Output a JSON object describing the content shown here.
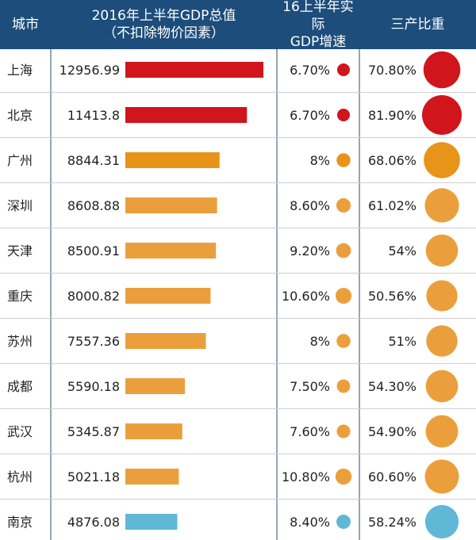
{
  "header": {
    "city": "城市",
    "gdp_line1": "2016年上半年GDP总值",
    "gdp_line2": "（不扣除物价因素）",
    "growth_line1": "16上半年实际",
    "growth_line2": "GDP增速",
    "tertiary": "三产比重"
  },
  "colors": {
    "header_bg": "#1d4d7a",
    "red": "#d0151d",
    "orange": "#eb9f3c",
    "dark_orange": "#e8931a",
    "blue": "#5fb8d6"
  },
  "chart_data": {
    "type": "table",
    "columns": [
      "城市",
      "2016年上半年GDP总值（不扣除物价因素）",
      "16上半年实际GDP增速",
      "三产比重"
    ],
    "rows": [
      {
        "city": "上海",
        "gdp": 12956.99,
        "gdp_label": "12956.99",
        "growth": 6.7,
        "growth_label": "6.70%",
        "tertiary": 70.8,
        "tertiary_label": "70.80%",
        "color": "red"
      },
      {
        "city": "北京",
        "gdp": 11413.8,
        "gdp_label": "11413.8",
        "growth": 6.7,
        "growth_label": "6.70%",
        "tertiary": 81.9,
        "tertiary_label": "81.90%",
        "color": "red"
      },
      {
        "city": "广州",
        "gdp": 8844.31,
        "gdp_label": "8844.31",
        "growth": 8,
        "growth_label": "8%",
        "tertiary": 68.06,
        "tertiary_label": "68.06%",
        "color": "dark_orange"
      },
      {
        "city": "深圳",
        "gdp": 8608.88,
        "gdp_label": "8608.88",
        "growth": 8.6,
        "growth_label": "8.60%",
        "tertiary": 61.02,
        "tertiary_label": "61.02%",
        "color": "orange"
      },
      {
        "city": "天津",
        "gdp": 8500.91,
        "gdp_label": "8500.91",
        "growth": 9.2,
        "growth_label": "9.20%",
        "tertiary": 54,
        "tertiary_label": "54%",
        "color": "orange"
      },
      {
        "city": "重庆",
        "gdp": 8000.82,
        "gdp_label": "8000.82",
        "growth": 10.6,
        "growth_label": "10.60%",
        "tertiary": 50.56,
        "tertiary_label": "50.56%",
        "color": "orange"
      },
      {
        "city": "苏州",
        "gdp": 7557.36,
        "gdp_label": "7557.36",
        "growth": 8,
        "growth_label": "8%",
        "tertiary": 51,
        "tertiary_label": "51%",
        "color": "orange"
      },
      {
        "city": "成都",
        "gdp": 5590.18,
        "gdp_label": "5590.18",
        "growth": 7.5,
        "growth_label": "7.50%",
        "tertiary": 54.3,
        "tertiary_label": "54.30%",
        "color": "orange"
      },
      {
        "city": "武汉",
        "gdp": 5345.87,
        "gdp_label": "5345.87",
        "growth": 7.6,
        "growth_label": "7.60%",
        "tertiary": 54.9,
        "tertiary_label": "54.90%",
        "color": "orange"
      },
      {
        "city": "杭州",
        "gdp": 5021.18,
        "gdp_label": "5021.18",
        "growth": 10.8,
        "growth_label": "10.80%",
        "tertiary": 60.6,
        "tertiary_label": "60.60%",
        "color": "orange"
      },
      {
        "city": "南京",
        "gdp": 4876.08,
        "gdp_label": "4876.08",
        "growth": 8.4,
        "growth_label": "8.40%",
        "tertiary": 58.24,
        "tertiary_label": "58.24%",
        "color": "blue"
      }
    ]
  }
}
